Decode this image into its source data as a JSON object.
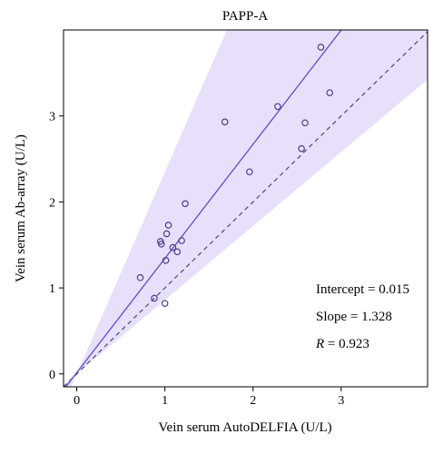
{
  "chart_data": {
    "type": "scatter",
    "title": "PAPP-A",
    "xlabel": "Vein serum AutoDELFIA (U/L)",
    "ylabel": "Vein serum Ab-array (U/L)",
    "xlim": [
      -0.15,
      3.98
    ],
    "ylim": [
      -0.15,
      4.0
    ],
    "xticks": [
      0,
      1,
      2,
      3
    ],
    "yticks": [
      0,
      1,
      2,
      3
    ],
    "grid": false,
    "points": [
      {
        "x": 0.72,
        "y": 1.12
      },
      {
        "x": 0.88,
        "y": 0.88
      },
      {
        "x": 0.95,
        "y": 1.54
      },
      {
        "x": 0.96,
        "y": 1.51
      },
      {
        "x": 1.0,
        "y": 0.82
      },
      {
        "x": 1.01,
        "y": 1.32
      },
      {
        "x": 1.02,
        "y": 1.63
      },
      {
        "x": 1.04,
        "y": 1.73
      },
      {
        "x": 1.09,
        "y": 1.47
      },
      {
        "x": 1.14,
        "y": 1.42
      },
      {
        "x": 1.19,
        "y": 1.55
      },
      {
        "x": 1.23,
        "y": 1.98
      },
      {
        "x": 1.68,
        "y": 2.93
      },
      {
        "x": 1.96,
        "y": 2.35
      },
      {
        "x": 2.28,
        "y": 3.11
      },
      {
        "x": 2.55,
        "y": 2.62
      },
      {
        "x": 2.59,
        "y": 2.92
      },
      {
        "x": 2.77,
        "y": 3.8
      },
      {
        "x": 2.87,
        "y": 3.27
      }
    ],
    "regression": {
      "intercept": 0.015,
      "slope": 1.328
    },
    "identity_line": true,
    "band": {
      "lower_slope": 0.86,
      "upper_slope": 2.35
    },
    "colors": {
      "regression": "#5b4fc7",
      "identity": "#4a4a72",
      "band": "#e8e0fb",
      "marker": "#4a3f8f"
    },
    "annotations": {
      "intercept": "Intercept = 0.015",
      "slope": "Slope = 1.328",
      "r_label": "R",
      "r_value": " = 0.923"
    }
  }
}
